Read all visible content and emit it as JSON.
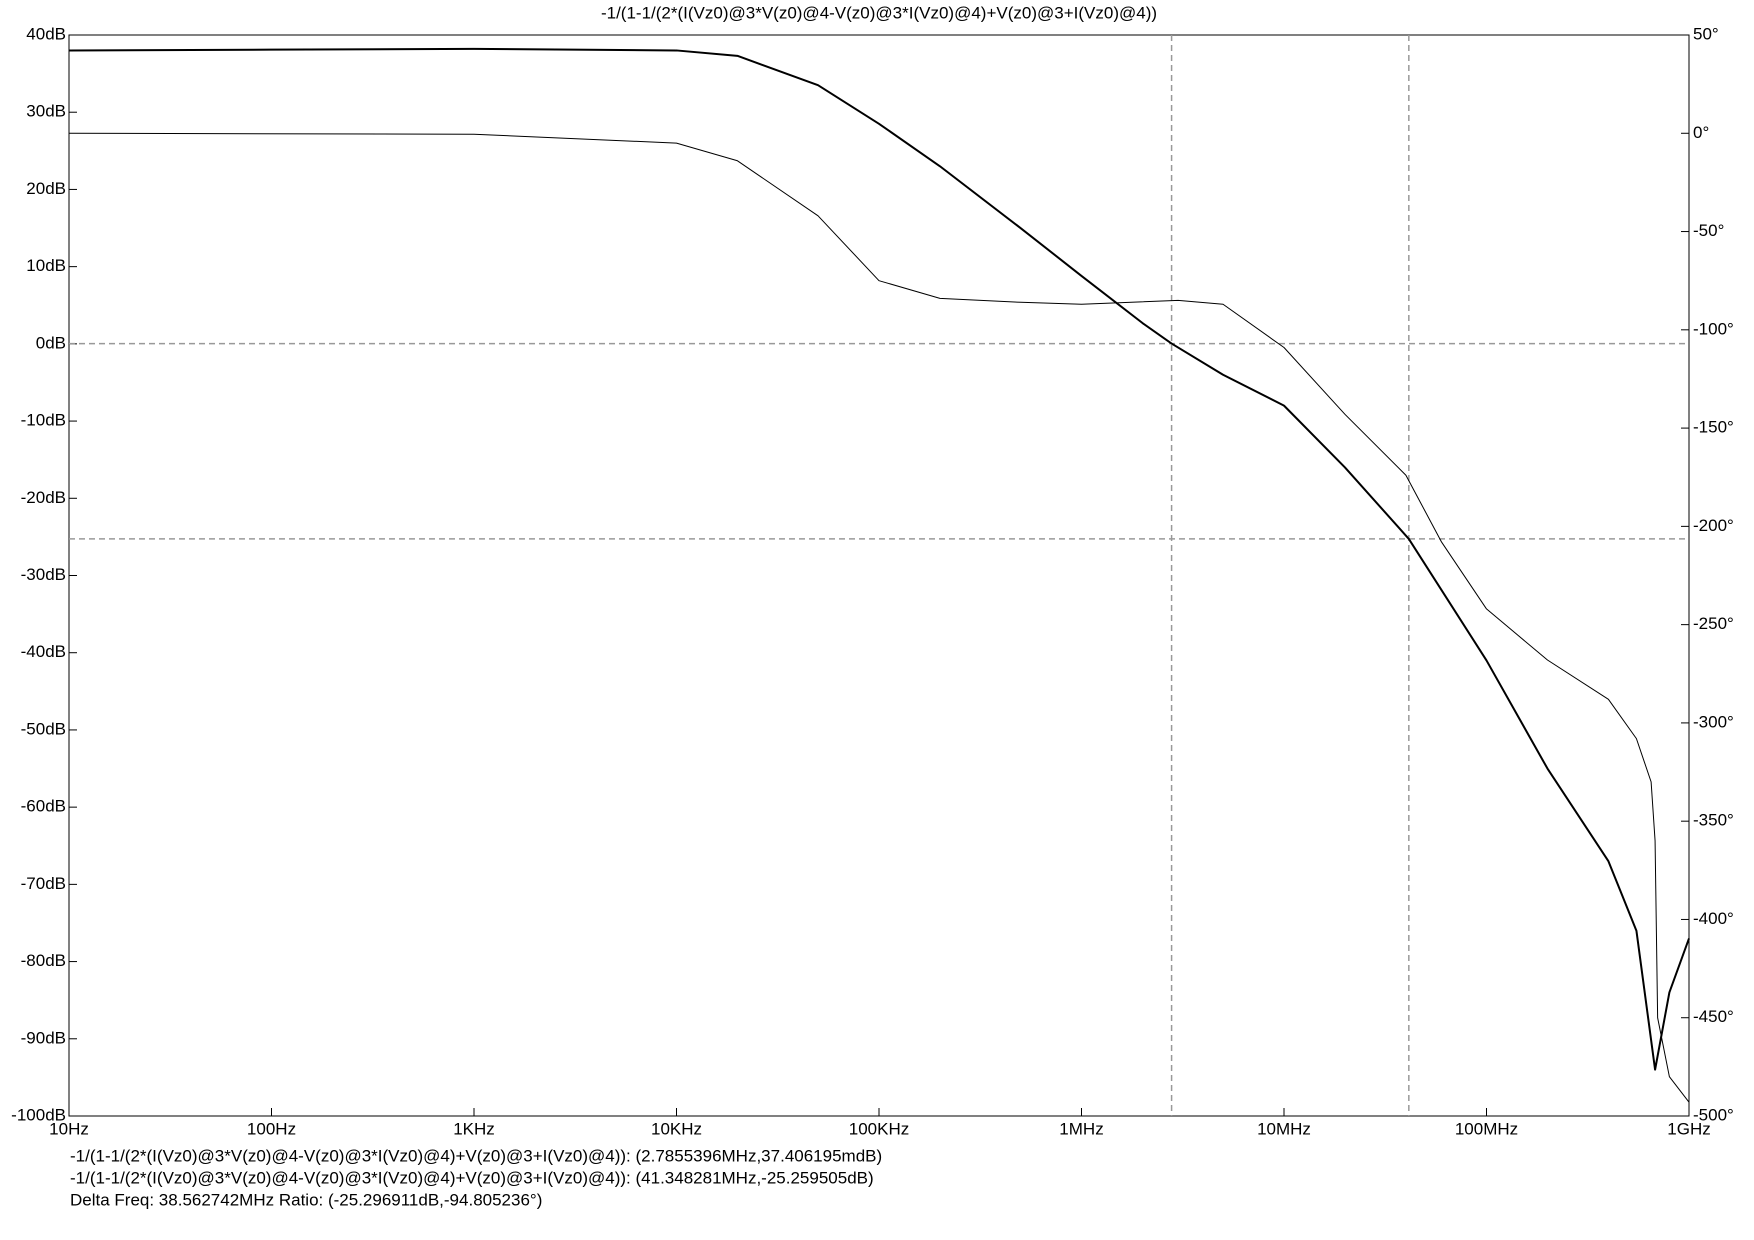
{
  "chart_data": {
    "type": "line",
    "title": "-1/(1-1/(2*(I(Vz0)@3*V(z0)@4-V(z0)@3*I(Vz0)@4)+V(z0)@3+I(Vz0)@4))",
    "xscale": "log",
    "xlim": [
      10,
      1000000000
    ],
    "xticks": [
      {
        "value": 10,
        "label": "10Hz"
      },
      {
        "value": 100,
        "label": "100Hz"
      },
      {
        "value": 1000,
        "label": "1KHz"
      },
      {
        "value": 10000,
        "label": "10KHz"
      },
      {
        "value": 100000,
        "label": "100KHz"
      },
      {
        "value": 1000000,
        "label": "1MHz"
      },
      {
        "value": 10000000,
        "label": "10MHz"
      },
      {
        "value": 100000000,
        "label": "100MHz"
      },
      {
        "value": 1000000000,
        "label": "1GHz"
      }
    ],
    "ylim": [
      -100,
      40
    ],
    "yticks": [
      {
        "value": 40,
        "label": "40dB"
      },
      {
        "value": 30,
        "label": "30dB"
      },
      {
        "value": 20,
        "label": "20dB"
      },
      {
        "value": 10,
        "label": "10dB"
      },
      {
        "value": 0,
        "label": "0dB"
      },
      {
        "value": -10,
        "label": "-10dB"
      },
      {
        "value": -20,
        "label": "-20dB"
      },
      {
        "value": -30,
        "label": "-30dB"
      },
      {
        "value": -40,
        "label": "-40dB"
      },
      {
        "value": -50,
        "label": "-50dB"
      },
      {
        "value": -60,
        "label": "-60dB"
      },
      {
        "value": -70,
        "label": "-70dB"
      },
      {
        "value": -80,
        "label": "-80dB"
      },
      {
        "value": -90,
        "label": "-90dB"
      },
      {
        "value": -100,
        "label": "-100dB"
      }
    ],
    "y2lim": [
      -500,
      50
    ],
    "y2ticks": [
      {
        "value": 50,
        "label": "50°"
      },
      {
        "value": 0,
        "label": "0°"
      },
      {
        "value": -50,
        "label": "-50°"
      },
      {
        "value": -100,
        "label": "-100°"
      },
      {
        "value": -150,
        "label": "-150°"
      },
      {
        "value": -200,
        "label": "-200°"
      },
      {
        "value": -250,
        "label": "-250°"
      },
      {
        "value": -300,
        "label": "-300°"
      },
      {
        "value": -350,
        "label": "-350°"
      },
      {
        "value": -400,
        "label": "-400°"
      },
      {
        "value": -450,
        "label": "-450°"
      },
      {
        "value": -500,
        "label": "-500°"
      }
    ],
    "series": [
      {
        "color": "#000000",
        "axis": "y",
        "x": [
          10,
          100,
          1000,
          10000,
          20000,
          50000,
          100000,
          200000,
          500000,
          1000000,
          2000000,
          2785539.6,
          5000000,
          10000000,
          20000000,
          41348281,
          100000000,
          200000000,
          400000000,
          550000000,
          680000000,
          800000000,
          1000000000
        ],
        "values": [
          38,
          38.1,
          38.2,
          38,
          37.3,
          33.5,
          28.5,
          23,
          15,
          8.8,
          2.7,
          0.037,
          -4,
          -8,
          -16,
          -25.26,
          -41,
          -55,
          -67,
          -76,
          -94,
          -84,
          -77
        ]
      },
      {
        "color": "#000000",
        "axis": "y2",
        "x": [
          10,
          1000,
          10000,
          20000,
          50000,
          100000,
          200000,
          500000,
          1000000,
          3000000,
          5000000,
          10000000,
          20000000,
          40000000,
          60000000,
          100000000,
          200000000,
          400000000,
          550000000,
          650000000,
          680000000,
          700000000,
          800000000,
          1000000000
        ],
        "values": [
          0,
          -0.5,
          -5,
          -14,
          -42,
          -75,
          -84,
          -86,
          -87,
          -85,
          -87,
          -109,
          -143,
          -174,
          -208,
          -242,
          -268,
          -288,
          -308,
          -330,
          -360,
          -450,
          -480,
          -493
        ]
      }
    ],
    "cursors": [
      {
        "x": 2785539.6,
        "y": 0.037406195
      },
      {
        "x": 41348281,
        "y": -25.259505
      }
    ],
    "readouts": [
      "-1/(1-1/(2*(I(Vz0)@3*V(z0)@4-V(z0)@3*I(Vz0)@4)+V(z0)@3+I(Vz0)@4)): (2.7855396MHz,37.406195mdB)",
      "-1/(1-1/(2*(I(Vz0)@3*V(z0)@4-V(z0)@3*I(Vz0)@4)+V(z0)@3+I(Vz0)@4)): (41.348281MHz,-25.259505dB)",
      "Delta Freq: 38.562742MHz Ratio: (-25.296911dB,-94.805236°)"
    ]
  }
}
